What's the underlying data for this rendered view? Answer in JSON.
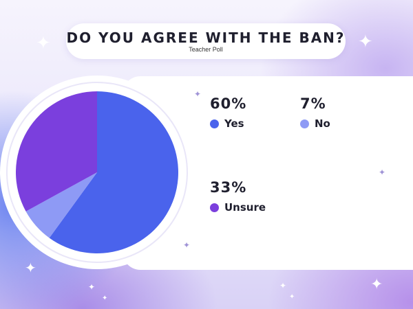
{
  "header": {
    "title": "DO YOU AGREE WITH THE BAN?",
    "subtitle": "Teacher Poll"
  },
  "chart_data": {
    "type": "pie",
    "title": "DO YOU AGREE WITH THE BAN?",
    "subtitle": "Teacher Poll",
    "slices": [
      {
        "label": "Yes",
        "value": 60,
        "display": "60%",
        "color": "#4a63ec"
      },
      {
        "label": "No",
        "value": 7,
        "display": "7%",
        "color": "#8e9af5"
      },
      {
        "label": "Unsure",
        "value": 33,
        "display": "33%",
        "color": "#7b3fdd"
      }
    ],
    "legend_placement": "right"
  },
  "icons": [
    "sparkle-icon"
  ]
}
